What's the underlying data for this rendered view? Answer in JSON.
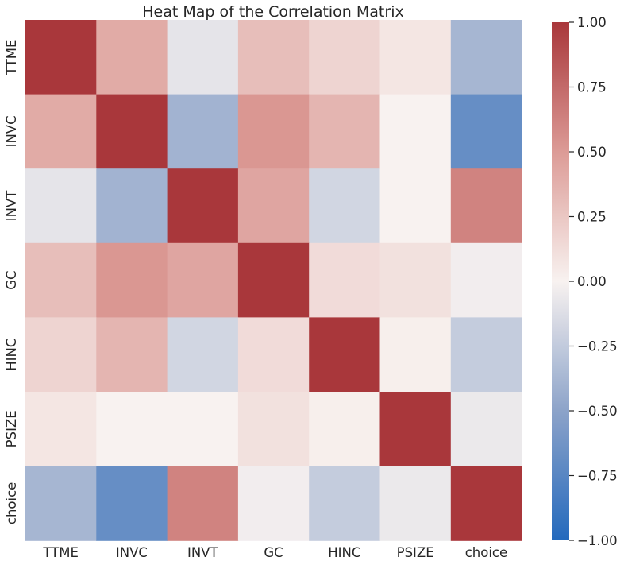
{
  "chart_data": {
    "type": "heatmap",
    "title": "Heat Map of the Correlation Matrix",
    "xlabel": "",
    "ylabel": "",
    "rows": [
      "TTME",
      "INVC",
      "INVT",
      "GC",
      "HINC",
      "PSIZE",
      "choice"
    ],
    "columns": [
      "TTME",
      "INVC",
      "INVT",
      "GC",
      "HINC",
      "PSIZE",
      "choice"
    ],
    "values": [
      [
        1.0,
        0.41,
        -0.09,
        0.3,
        0.17,
        0.07,
        -0.38
      ],
      [
        0.41,
        1.0,
        -0.4,
        0.52,
        0.35,
        0.0,
        -0.68
      ],
      [
        -0.09,
        -0.4,
        1.0,
        0.44,
        -0.18,
        0.0,
        0.62
      ],
      [
        0.3,
        0.52,
        0.44,
        1.0,
        0.13,
        0.1,
        -0.03
      ],
      [
        0.17,
        0.35,
        -0.18,
        0.13,
        1.0,
        0.02,
        -0.24
      ],
      [
        0.07,
        0.0,
        0.0,
        0.1,
        0.02,
        1.0,
        -0.06
      ],
      [
        -0.38,
        -0.68,
        0.62,
        -0.03,
        -0.24,
        -0.06,
        1.0
      ]
    ],
    "colorbar": {
      "min": -1.0,
      "max": 1.0,
      "ticks": [
        1.0,
        0.75,
        0.5,
        0.25,
        0.0,
        -0.25,
        -0.5,
        -0.75,
        -1.0
      ],
      "tick_labels": [
        "1.00",
        "0.75",
        "0.50",
        "0.25",
        "0.00",
        "−0.25",
        "−0.50",
        "−0.75",
        "−1.00"
      ],
      "colormap": "vlag",
      "colors": [
        "#2369bd",
        "#8ca3c9",
        "#f8f2f0",
        "#dc9b96",
        "#a9373b"
      ]
    },
    "grid": false,
    "legend": "colorbar-right"
  }
}
